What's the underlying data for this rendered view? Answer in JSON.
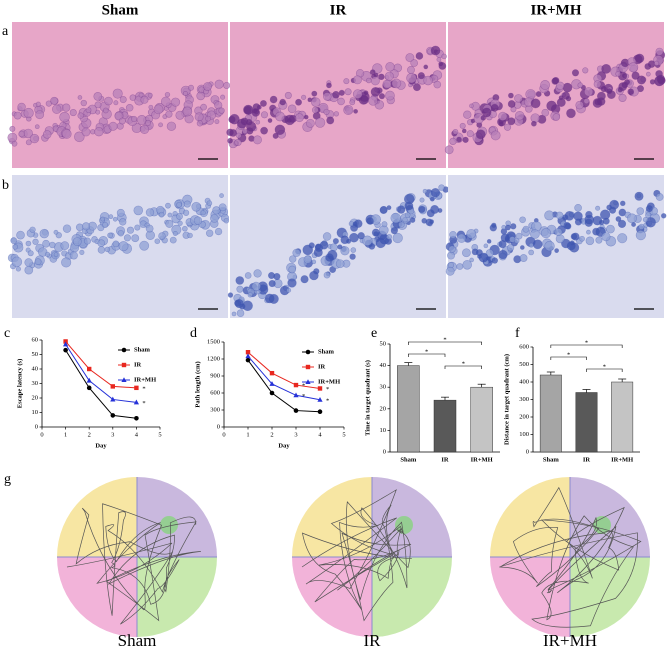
{
  "panel_letters": [
    "a",
    "b",
    "c",
    "d",
    "e",
    "f",
    "g"
  ],
  "columns": [
    "Sham",
    "IR",
    "IR+MH"
  ],
  "chart_data": [
    {
      "type": "line",
      "xlabel": "Day",
      "ylabel": "Escape latency (s)",
      "x": [
        1,
        2,
        3,
        4
      ],
      "xlim": [
        0,
        5
      ],
      "xticks": [
        0,
        1,
        2,
        3,
        4,
        5
      ],
      "ylim": [
        0,
        60
      ],
      "yticks": [
        0,
        10,
        20,
        30,
        40,
        50,
        60
      ],
      "legend": "upper right",
      "series": [
        {
          "name": "Sham",
          "color": "#000000",
          "marker": "circle",
          "values": [
            53,
            27,
            8,
            6
          ]
        },
        {
          "name": "IR",
          "color": "#e8271f",
          "marker": "square",
          "values": [
            59,
            40,
            28,
            27
          ]
        },
        {
          "name": "IR+MH",
          "color": "#2531d8",
          "marker": "triangle",
          "values": [
            57,
            32,
            19,
            17
          ]
        }
      ],
      "annotations": [
        {
          "text": "*",
          "x": 4,
          "y": 27
        },
        {
          "text": "*",
          "x": 4,
          "y": 17
        }
      ]
    },
    {
      "type": "line",
      "xlabel": "Day",
      "ylabel": "Path length (cm)",
      "x": [
        1,
        2,
        3,
        4
      ],
      "xlim": [
        0,
        5
      ],
      "xticks": [
        0,
        1,
        2,
        3,
        4,
        5
      ],
      "ylim": [
        0,
        1500
      ],
      "yticks": [
        0,
        300,
        600,
        900,
        1200,
        1500
      ],
      "legend": "upper right",
      "series": [
        {
          "name": "Sham",
          "color": "#000000",
          "marker": "circle",
          "values": [
            1180,
            600,
            290,
            270
          ]
        },
        {
          "name": "IR",
          "color": "#e8271f",
          "marker": "square",
          "values": [
            1320,
            950,
            740,
            680
          ]
        },
        {
          "name": "IR+MH",
          "color": "#2531d8",
          "marker": "triangle",
          "values": [
            1250,
            760,
            560,
            480
          ]
        }
      ],
      "annotations": [
        {
          "text": "*",
          "x": 3,
          "y": 740
        },
        {
          "text": "*",
          "x": 3,
          "y": 560
        },
        {
          "text": "*",
          "x": 4,
          "y": 680
        },
        {
          "text": "*",
          "x": 4,
          "y": 480
        }
      ]
    },
    {
      "type": "bar",
      "ylabel": "Time in target quadrant (s)",
      "categories": [
        "Sham",
        "IR",
        "IR+MH"
      ],
      "values": [
        40,
        24,
        30
      ],
      "colors": [
        "#a5a5a5",
        "#595959",
        "#c4c4c4"
      ],
      "ylim": [
        0,
        50
      ],
      "yticks": [
        0,
        10,
        20,
        30,
        40,
        50
      ],
      "annotations": [
        "*",
        "*",
        "*"
      ]
    },
    {
      "type": "bar",
      "ylabel": "Distance in target quadrant (cm)",
      "categories": [
        "Sham",
        "IR",
        "IR+MH"
      ],
      "values": [
        440,
        340,
        400
      ],
      "colors": [
        "#a5a5a5",
        "#595959",
        "#c4c4c4"
      ],
      "ylim": [
        0,
        600
      ],
      "yticks": [
        0,
        100,
        200,
        300,
        400,
        500,
        600
      ],
      "annotations": [
        "*",
        "*",
        "*"
      ]
    }
  ]
}
